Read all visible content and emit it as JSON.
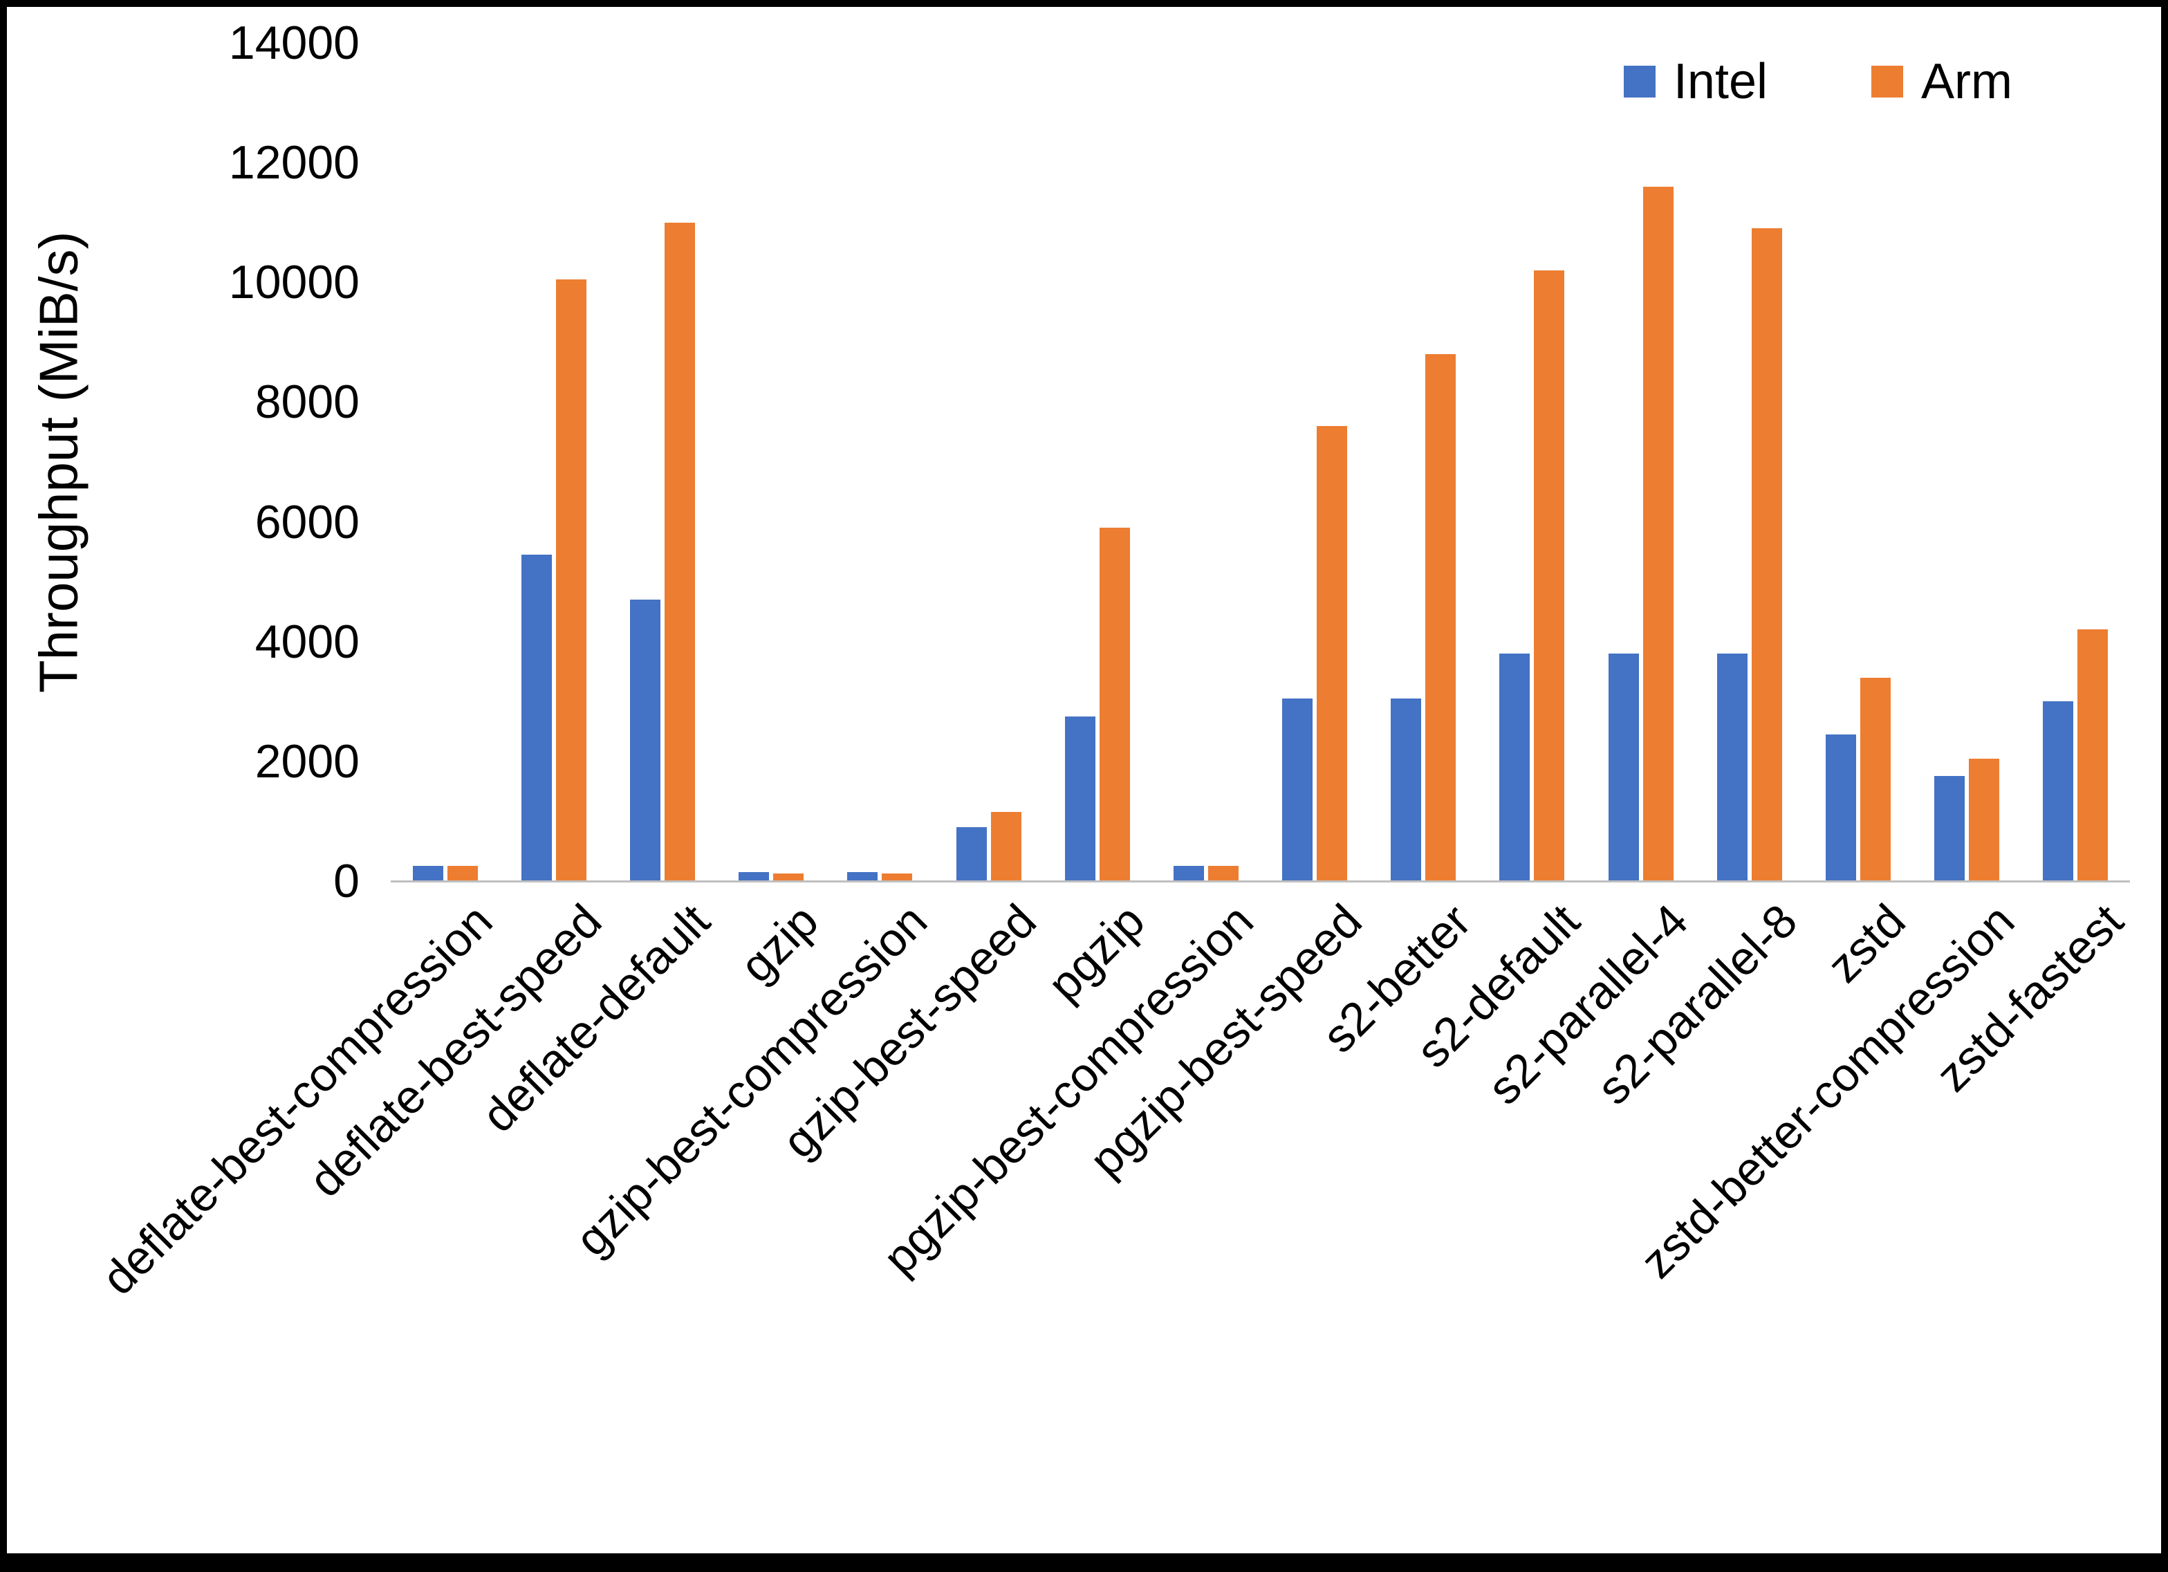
{
  "chart_data": {
    "type": "bar",
    "title": "",
    "ylabel": "Throughput (MiB/s)",
    "xlabel": "",
    "ylim": [
      0,
      14000
    ],
    "ytick_step": 2000,
    "grid": false,
    "legend_position": "top-right",
    "categories": [
      "deflate-best-compression",
      "deflate-best-speed",
      "deflate-default",
      "gzip",
      "gzip-best-compression",
      "gzip-best-speed",
      "pgzip",
      "pgzip-best-compression",
      "pgzip-best-speed",
      "s2-better",
      "s2-default",
      "s2-parallel-4",
      "s2-parallel-8",
      "zstd",
      "zstd-better-compression",
      "zstd-fastest"
    ],
    "series": [
      {
        "name": "Intel",
        "color": "#4472C4",
        "values": [
          250,
          5450,
          4700,
          150,
          150,
          900,
          2750,
          250,
          3050,
          3050,
          3800,
          3800,
          3800,
          2450,
          1750,
          3000
        ]
      },
      {
        "name": "Arm",
        "color": "#ED7D31",
        "values": [
          250,
          10050,
          11000,
          130,
          130,
          1150,
          5900,
          250,
          7600,
          8800,
          10200,
          11600,
          10900,
          3400,
          2050,
          4200
        ]
      }
    ],
    "colors": {
      "axis_line": "#BFBFBF",
      "text": "#000000",
      "background": "#FFFFFF",
      "border": "#000000"
    }
  }
}
